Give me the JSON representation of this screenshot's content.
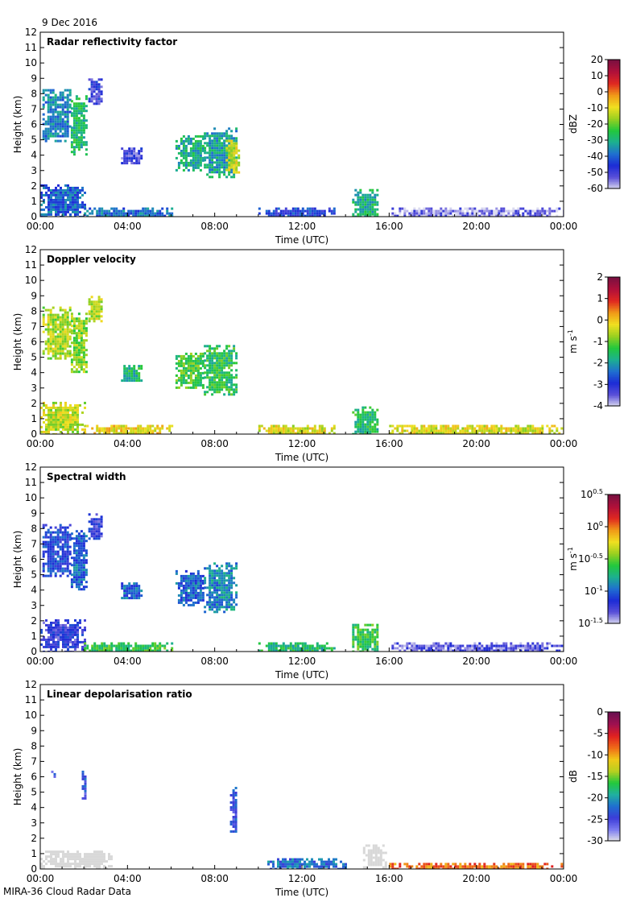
{
  "date_label": "9 Dec 2016",
  "footer_label": "MIRA-36 Cloud Radar Data",
  "colors": {
    "palette": [
      "#dcdcf0",
      "#5a50d8",
      "#1c2bd6",
      "#1f6fd0",
      "#1cb090",
      "#22c83c",
      "#9ad020",
      "#f0e020",
      "#f09a18",
      "#e02820",
      "#b0103a",
      "#7a1040"
    ],
    "lidr_palette": [
      "#e6e6e6",
      "#7c7cf0",
      "#3c3cd8",
      "#1f6fd0",
      "#20b0a0",
      "#22c83c",
      "#b8d020",
      "#f0c818",
      "#f06a18",
      "#e02020",
      "#a01050",
      "#6a1050"
    ],
    "ldr_grey": "#d8d8d8"
  },
  "chart_data": [
    {
      "type": "heatmap",
      "title": "Radar reflectivity factor",
      "xlabel": "Time (UTC)",
      "ylabel": "Height (km)",
      "xlim": [
        0,
        24
      ],
      "ylim": [
        0,
        12
      ],
      "x_ticks": [
        "00:00",
        "04:00",
        "08:00",
        "12:00",
        "16:00",
        "20:00",
        "00:00"
      ],
      "y_ticks": [
        "0",
        "1",
        "2",
        "3",
        "4",
        "5",
        "6",
        "7",
        "8",
        "9",
        "10",
        "11",
        "12"
      ],
      "colorbar": {
        "unit": "dBZ",
        "range": [
          -60,
          20
        ],
        "ticks": [
          "20",
          "10",
          "0",
          "-10",
          "-20",
          "-30",
          "-40",
          "-50",
          "-60"
        ]
      },
      "cloud_regions": [
        {
          "t0": 0.1,
          "t1": 1.4,
          "h0": 4.9,
          "h1": 8.3,
          "v": -36
        },
        {
          "t0": 1.4,
          "t1": 2.1,
          "h0": 4.1,
          "h1": 7.9,
          "v": -28
        },
        {
          "t0": 2.2,
          "t1": 2.8,
          "h0": 7.3,
          "h1": 9.0,
          "v": -48
        },
        {
          "t0": 3.7,
          "t1": 4.6,
          "h0": 3.4,
          "h1": 4.5,
          "v": -50
        },
        {
          "t0": 6.2,
          "t1": 7.5,
          "h0": 3.0,
          "h1": 5.3,
          "v": -30
        },
        {
          "t0": 7.5,
          "t1": 9.0,
          "h0": 2.5,
          "h1": 5.8,
          "v": -32
        },
        {
          "t0": 8.5,
          "t1": 9.1,
          "h0": 2.8,
          "h1": 5.0,
          "v": -12
        },
        {
          "t0": 0.0,
          "t1": 2.0,
          "h0": 0.0,
          "h1": 2.1,
          "v": -40
        },
        {
          "t0": 2.0,
          "t1": 6.0,
          "h0": 0.0,
          "h1": 0.6,
          "v": -38
        },
        {
          "t0": 10.0,
          "t1": 13.5,
          "h0": 0.0,
          "h1": 0.6,
          "v": -44
        },
        {
          "t0": 14.3,
          "t1": 15.5,
          "h0": 0.0,
          "h1": 1.8,
          "v": -30
        },
        {
          "t0": 16.0,
          "t1": 24.0,
          "h0": 0.0,
          "h1": 0.6,
          "v": -55
        }
      ]
    },
    {
      "type": "heatmap",
      "title": "Doppler velocity",
      "xlabel": "Time (UTC)",
      "ylabel": "Height (km)",
      "xlim": [
        0,
        24
      ],
      "ylim": [
        0,
        12
      ],
      "x_ticks": [
        "00:00",
        "04:00",
        "08:00",
        "12:00",
        "16:00",
        "20:00",
        "00:00"
      ],
      "y_ticks": [
        "0",
        "1",
        "2",
        "3",
        "4",
        "5",
        "6",
        "7",
        "8",
        "9",
        "10",
        "11",
        "12"
      ],
      "colorbar": {
        "unit": "m s-1",
        "range": [
          -4,
          2
        ],
        "ticks": [
          "2",
          "1",
          "0",
          "-1",
          "-2",
          "-3",
          "-4"
        ]
      },
      "cloud_regions": [
        {
          "t0": 0.1,
          "t1": 1.4,
          "h0": 4.9,
          "h1": 8.3,
          "v": -0.6
        },
        {
          "t0": 1.4,
          "t1": 2.1,
          "h0": 4.1,
          "h1": 7.9,
          "v": -0.8
        },
        {
          "t0": 2.2,
          "t1": 2.8,
          "h0": 7.3,
          "h1": 9.0,
          "v": -0.5
        },
        {
          "t0": 3.7,
          "t1": 4.6,
          "h0": 3.4,
          "h1": 4.5,
          "v": -1.6
        },
        {
          "t0": 6.2,
          "t1": 7.5,
          "h0": 3.0,
          "h1": 5.3,
          "v": -1.2
        },
        {
          "t0": 7.5,
          "t1": 9.0,
          "h0": 2.5,
          "h1": 5.8,
          "v": -1.4
        },
        {
          "t0": 0.0,
          "t1": 2.0,
          "h0": 0.0,
          "h1": 2.1,
          "v": -0.5
        },
        {
          "t0": 2.0,
          "t1": 6.0,
          "h0": 0.0,
          "h1": 0.6,
          "v": -0.1
        },
        {
          "t0": 10.0,
          "t1": 13.5,
          "h0": 0.0,
          "h1": 0.6,
          "v": -0.3
        },
        {
          "t0": 14.3,
          "t1": 15.5,
          "h0": 0.0,
          "h1": 1.8,
          "v": -1.5
        },
        {
          "t0": 16.0,
          "t1": 24.0,
          "h0": 0.0,
          "h1": 0.6,
          "v": -0.3
        }
      ]
    },
    {
      "type": "heatmap",
      "title": "Spectral width",
      "xlabel": "Time (UTC)",
      "ylabel": "Height (km)",
      "xlim": [
        0,
        24
      ],
      "ylim": [
        0,
        12
      ],
      "x_ticks": [
        "00:00",
        "04:00",
        "08:00",
        "12:00",
        "16:00",
        "20:00",
        "00:00"
      ],
      "y_ticks": [
        "0",
        "1",
        "2",
        "3",
        "4",
        "5",
        "6",
        "7",
        "8",
        "9",
        "10",
        "11",
        "12"
      ],
      "colorbar": {
        "unit": "m s-1",
        "range": [
          -1.5,
          0.5
        ],
        "ticks": [
          "0.5",
          "0",
          "-0.5",
          "-1",
          "-1.5"
        ],
        "tick_base": "10"
      },
      "cloud_regions": [
        {
          "t0": 0.1,
          "t1": 1.4,
          "h0": 4.9,
          "h1": 8.3,
          "v": -1.1
        },
        {
          "t0": 1.4,
          "t1": 2.1,
          "h0": 4.1,
          "h1": 7.9,
          "v": -1.0
        },
        {
          "t0": 2.2,
          "t1": 2.8,
          "h0": 7.3,
          "h1": 9.0,
          "v": -1.2
        },
        {
          "t0": 3.7,
          "t1": 4.6,
          "h0": 3.4,
          "h1": 4.5,
          "v": -1.0
        },
        {
          "t0": 6.2,
          "t1": 7.5,
          "h0": 3.0,
          "h1": 5.3,
          "v": -1.0
        },
        {
          "t0": 7.5,
          "t1": 9.0,
          "h0": 2.5,
          "h1": 5.8,
          "v": -0.9
        },
        {
          "t0": 0.0,
          "t1": 2.0,
          "h0": 0.0,
          "h1": 2.1,
          "v": -1.2
        },
        {
          "t0": 2.0,
          "t1": 6.0,
          "h0": 0.0,
          "h1": 0.6,
          "v": -0.6
        },
        {
          "t0": 10.0,
          "t1": 13.5,
          "h0": 0.0,
          "h1": 0.6,
          "v": -0.7
        },
        {
          "t0": 14.3,
          "t1": 15.5,
          "h0": 0.0,
          "h1": 1.8,
          "v": -0.6
        },
        {
          "t0": 16.0,
          "t1": 24.0,
          "h0": 0.0,
          "h1": 0.6,
          "v": -1.3
        }
      ]
    },
    {
      "type": "heatmap",
      "title": "Linear depolarisation ratio",
      "xlabel": "Time (UTC)",
      "ylabel": "Height (km)",
      "xlim": [
        0,
        24
      ],
      "ylim": [
        0,
        12
      ],
      "x_ticks": [
        "00:00",
        "04:00",
        "08:00",
        "12:00",
        "16:00",
        "20:00",
        "00:00"
      ],
      "y_ticks": [
        "0",
        "1",
        "2",
        "3",
        "4",
        "5",
        "6",
        "7",
        "8",
        "9",
        "10",
        "11",
        "12"
      ],
      "colorbar": {
        "unit": "dB",
        "range": [
          -30,
          0
        ],
        "ticks": [
          "0",
          "-5",
          "-10",
          "-15",
          "-20",
          "-25",
          "-30"
        ]
      },
      "cloud_regions": [
        {
          "t0": 0.5,
          "t1": 0.7,
          "h0": 5.9,
          "h1": 6.4,
          "v": -25
        },
        {
          "t0": 1.9,
          "t1": 2.1,
          "h0": 4.6,
          "h1": 6.4,
          "v": -24
        },
        {
          "t0": 8.7,
          "t1": 9.0,
          "h0": 2.5,
          "h1": 5.5,
          "v": -24
        },
        {
          "t0": 0.0,
          "t1": 3.3,
          "h0": 0.0,
          "h1": 1.2,
          "v": -32
        },
        {
          "t0": 10.3,
          "t1": 14.0,
          "h0": 0.0,
          "h1": 0.7,
          "v": -22
        },
        {
          "t0": 14.8,
          "t1": 15.8,
          "h0": 0.0,
          "h1": 1.6,
          "v": -32
        },
        {
          "t0": 16.0,
          "t1": 24.0,
          "h0": 0.0,
          "h1": 0.4,
          "v": -8
        }
      ]
    }
  ]
}
